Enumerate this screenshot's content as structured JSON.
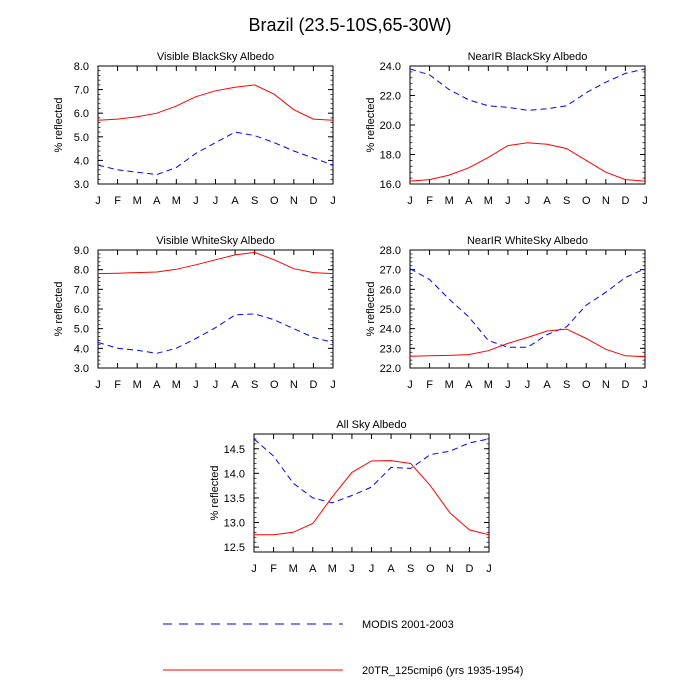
{
  "figure": {
    "title": "Brazil (23.5-10S,65-30W)"
  },
  "legend": {
    "modis_label": "MODIS 2001-2003",
    "model_label": "20TR_125cmip6 (yrs 1935-1954)"
  },
  "colors": {
    "modis": "#0000ff",
    "model": "#ff0000",
    "axis": "#000000"
  },
  "chart_data": [
    {
      "type": "line",
      "title": "Visible BlackSky Albedo",
      "ylabel": "% reflected",
      "xlabel": "",
      "categories": [
        "J",
        "F",
        "M",
        "A",
        "M",
        "J",
        "J",
        "A",
        "S",
        "O",
        "N",
        "D",
        "J"
      ],
      "ylim": [
        3.0,
        8.0
      ],
      "yticks": [
        "3.0",
        "4.0",
        "5.0",
        "6.0",
        "7.0",
        "8.0"
      ],
      "grid": false,
      "series": [
        {
          "name": "MODIS 2001-2003",
          "style": "dashed",
          "color": "#0000ff",
          "values": [
            3.8,
            3.6,
            3.5,
            3.4,
            3.7,
            4.3,
            4.75,
            5.2,
            5.05,
            4.75,
            4.4,
            4.1,
            3.8
          ]
        },
        {
          "name": "20TR_125cmip6 (yrs 1935-1954)",
          "style": "solid",
          "color": "#ff0000",
          "values": [
            5.7,
            5.75,
            5.85,
            6.0,
            6.3,
            6.7,
            6.95,
            7.1,
            7.2,
            6.8,
            6.15,
            5.75,
            5.7
          ]
        }
      ]
    },
    {
      "type": "line",
      "title": "NearIR BlackSky Albedo",
      "ylabel": "% reflected",
      "xlabel": "",
      "categories": [
        "J",
        "F",
        "M",
        "A",
        "M",
        "J",
        "J",
        "A",
        "S",
        "O",
        "N",
        "D",
        "J"
      ],
      "ylim": [
        16.0,
        24.0
      ],
      "yticks": [
        "16.0",
        "18.0",
        "20.0",
        "22.0",
        "24.0"
      ],
      "grid": false,
      "series": [
        {
          "name": "MODIS 2001-2003",
          "style": "dashed",
          "color": "#0000ff",
          "values": [
            23.8,
            23.4,
            22.4,
            21.7,
            21.3,
            21.2,
            21.0,
            21.1,
            21.3,
            22.2,
            22.9,
            23.5,
            23.8
          ]
        },
        {
          "name": "20TR_125cmip6 (yrs 1935-1954)",
          "style": "solid",
          "color": "#ff0000",
          "values": [
            16.2,
            16.3,
            16.6,
            17.1,
            17.8,
            18.6,
            18.8,
            18.7,
            18.4,
            17.6,
            16.8,
            16.3,
            16.2
          ]
        }
      ]
    },
    {
      "type": "line",
      "title": "Visible WhiteSky Albedo",
      "ylabel": "% reflected",
      "xlabel": "",
      "categories": [
        "J",
        "F",
        "M",
        "A",
        "M",
        "J",
        "J",
        "A",
        "S",
        "O",
        "N",
        "D",
        "J"
      ],
      "ylim": [
        3.0,
        9.0
      ],
      "yticks": [
        "3.0",
        "4.0",
        "5.0",
        "6.0",
        "7.0",
        "8.0",
        "9.0"
      ],
      "grid": false,
      "series": [
        {
          "name": "MODIS 2001-2003",
          "style": "dashed",
          "color": "#0000ff",
          "values": [
            4.3,
            4.0,
            3.9,
            3.75,
            4.0,
            4.5,
            5.05,
            5.7,
            5.75,
            5.45,
            5.0,
            4.55,
            4.3
          ]
        },
        {
          "name": "20TR_125cmip6 (yrs 1935-1954)",
          "style": "solid",
          "color": "#ff0000",
          "values": [
            7.8,
            7.82,
            7.85,
            7.88,
            8.02,
            8.25,
            8.5,
            8.75,
            8.88,
            8.5,
            8.05,
            7.85,
            7.8
          ]
        }
      ]
    },
    {
      "type": "line",
      "title": "NearIR WhiteSky Albedo",
      "ylabel": "% reflected",
      "xlabel": "",
      "categories": [
        "J",
        "F",
        "M",
        "A",
        "M",
        "J",
        "J",
        "A",
        "S",
        "O",
        "N",
        "D",
        "J"
      ],
      "ylim": [
        22.0,
        28.0
      ],
      "yticks": [
        "22.0",
        "23.0",
        "24.0",
        "25.0",
        "26.0",
        "27.0",
        "28.0"
      ],
      "grid": false,
      "series": [
        {
          "name": "MODIS 2001-2003",
          "style": "dashed",
          "color": "#0000ff",
          "values": [
            27.05,
            26.5,
            25.5,
            24.6,
            23.4,
            23.05,
            23.05,
            23.7,
            24.1,
            25.2,
            25.85,
            26.6,
            27.05
          ]
        },
        {
          "name": "20TR_125cmip6 (yrs 1935-1954)",
          "style": "solid",
          "color": "#ff0000",
          "values": [
            22.6,
            22.62,
            22.64,
            22.68,
            22.88,
            23.25,
            23.55,
            23.88,
            23.98,
            23.5,
            22.95,
            22.62,
            22.58
          ]
        }
      ]
    },
    {
      "type": "line",
      "title": "All Sky Albedo",
      "ylabel": "% reflected",
      "xlabel": "",
      "categories": [
        "J",
        "F",
        "M",
        "A",
        "M",
        "J",
        "J",
        "A",
        "S",
        "O",
        "N",
        "D",
        "J"
      ],
      "ylim": [
        12.4,
        14.8
      ],
      "yticks": [
        "12.5",
        "13.0",
        "13.5",
        "14.0",
        "14.5"
      ],
      "grid": false,
      "series": [
        {
          "name": "MODIS 2001-2003",
          "style": "dashed",
          "color": "#0000ff",
          "values": [
            14.7,
            14.35,
            13.8,
            13.5,
            13.4,
            13.55,
            13.72,
            14.12,
            14.1,
            14.38,
            14.45,
            14.62,
            14.7
          ]
        },
        {
          "name": "20TR_125cmip6 (yrs 1935-1954)",
          "style": "solid",
          "color": "#ff0000",
          "values": [
            12.75,
            12.75,
            12.8,
            12.98,
            13.52,
            14.02,
            14.25,
            14.26,
            14.2,
            13.75,
            13.2,
            12.85,
            12.75
          ]
        }
      ]
    }
  ]
}
